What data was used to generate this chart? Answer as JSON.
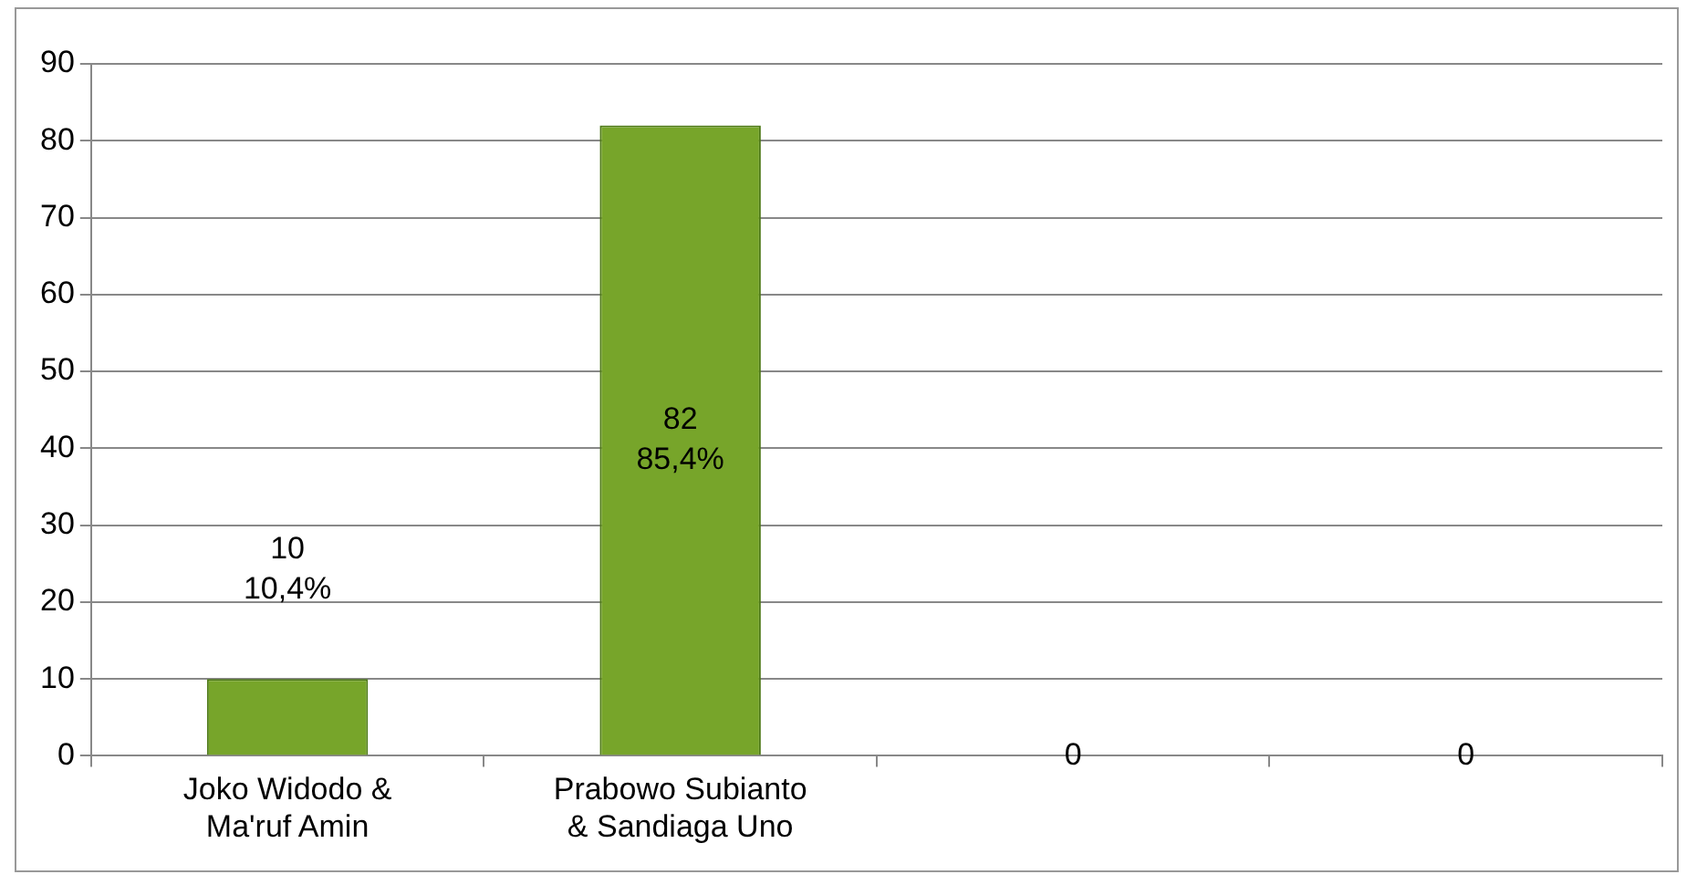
{
  "chart_data": {
    "type": "bar",
    "categories": [
      "Joko Widodo & Ma'ruf Amin",
      "Prabowo Subianto & Sandiaga Uno",
      null,
      null
    ],
    "values": [
      10,
      82,
      0,
      0
    ],
    "value_labels": [
      "10\n10,4%",
      "82\n85,4%",
      "0",
      "0"
    ],
    "color": "#77a52a",
    "ylim": [
      0,
      90
    ],
    "yticks": [
      0,
      10,
      20,
      30,
      40,
      50,
      60,
      70,
      80,
      90
    ],
    "grid": "y",
    "legend": false
  }
}
